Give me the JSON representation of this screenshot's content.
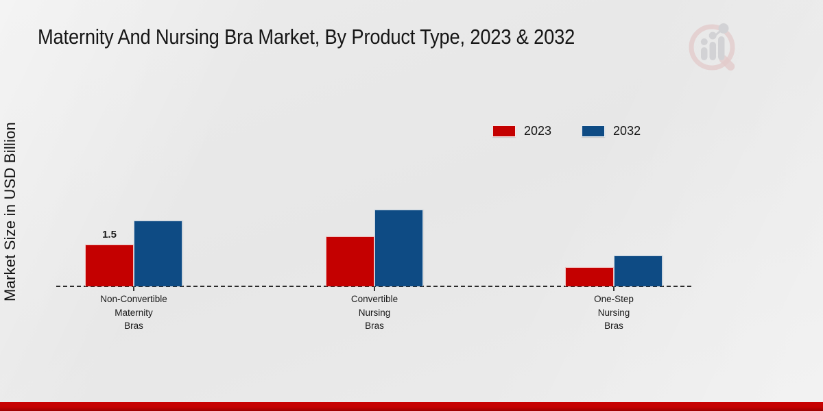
{
  "title": "Maternity And Nursing Bra Market, By Product Type, 2023 & 2032",
  "y_axis_label": "Market Size in USD Billion",
  "legend": {
    "items": [
      {
        "label": "2023",
        "color": "#c40000"
      },
      {
        "label": "2032",
        "color": "#0e4b84"
      }
    ],
    "position": "top-right"
  },
  "branding": {
    "watermark_icon": "magnifier-bar-chart-logo",
    "watermark_lens_color": "#d9a3a3",
    "watermark_bars_color": "#bcbcc1",
    "bottom_bar_color": "#c40000"
  },
  "chart_data": {
    "type": "bar",
    "title": "Maternity And Nursing Bra Market, By Product Type, 2023 & 2032",
    "categories": [
      "Non-Convertible Maternity Bras",
      "Convertible Nursing Bras",
      "One-Step Nursing Bras"
    ],
    "series": [
      {
        "name": "2023",
        "color": "#c40000",
        "values": [
          1.5,
          1.8,
          0.7
        ]
      },
      {
        "name": "2032",
        "color": "#0e4b84",
        "values": [
          2.35,
          2.75,
          1.1
        ]
      }
    ],
    "annotations": [
      {
        "series": "2023",
        "category_index": 0,
        "text": "1.5"
      }
    ],
    "xlabel": "",
    "ylabel": "Market Size in USD Billion",
    "ylim": [
      0,
      3
    ],
    "grid": false,
    "y_axis_ticks_visible": false,
    "baseline_style": "dashed",
    "legend_position": "top-right"
  }
}
